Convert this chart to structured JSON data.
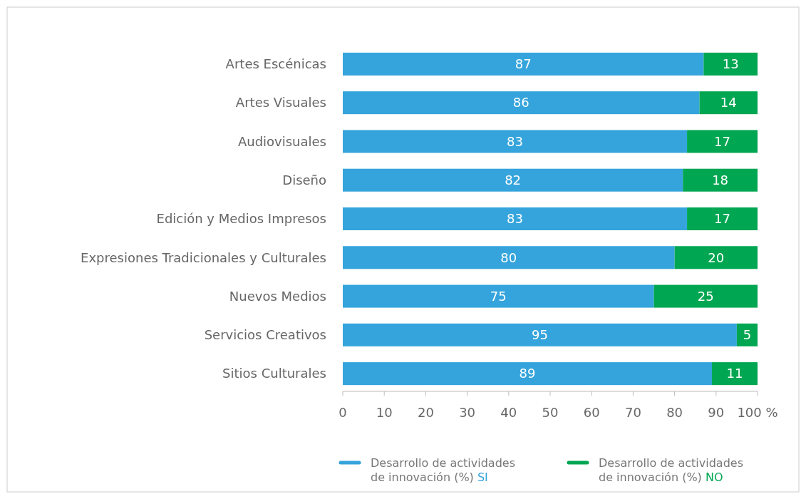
{
  "chart_data": {
    "type": "bar",
    "orientation": "horizontal",
    "stacked": true,
    "data_labels": true,
    "legend": "bottom",
    "grid": false,
    "categories": [
      "Artes Escénicas",
      "Artes Visuales",
      "Audiovisuales",
      "Diseño",
      "Edición y Medios Impresos",
      "Expresiones Tradicionales y Culturales",
      "Nuevos Medios",
      "Servicios Creativos",
      "Sitios Culturales"
    ],
    "series": [
      {
        "name": "Desarrollo de actividades de innovación (%) SI",
        "color": "#35a4dc",
        "values": [
          87,
          86,
          83,
          82,
          83,
          80,
          75,
          95,
          89
        ]
      },
      {
        "name": "Desarrollo de actividades de innovación (%) NO",
        "color": "#00a651",
        "values": [
          13,
          14,
          17,
          18,
          17,
          20,
          25,
          5,
          11
        ]
      }
    ],
    "xlim": [
      0,
      100
    ],
    "xticks": [
      0,
      10,
      20,
      30,
      40,
      50,
      60,
      70,
      80,
      90,
      {
        "value": 100,
        "label": "100 %"
      }
    ]
  }
}
